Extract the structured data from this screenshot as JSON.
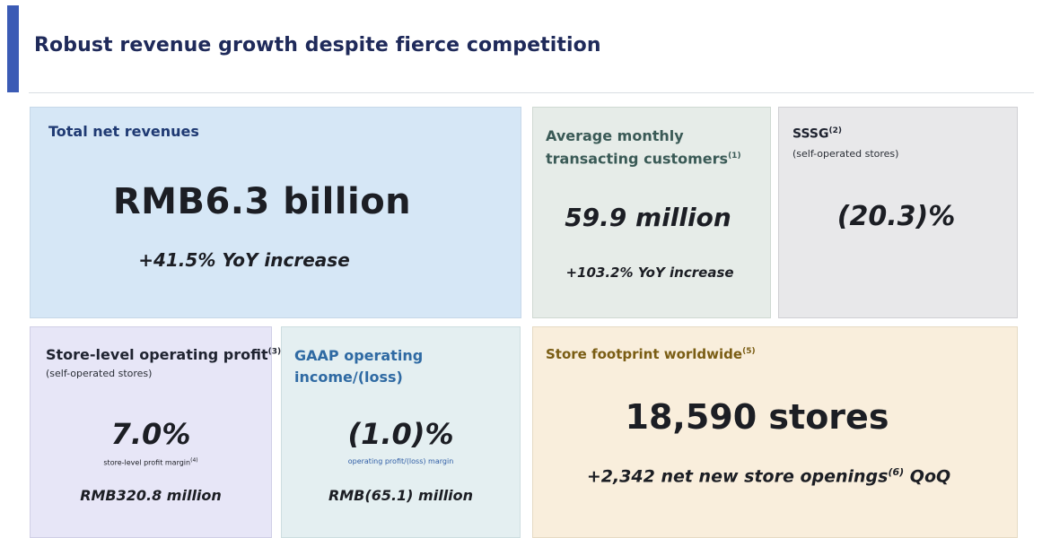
{
  "header": {
    "title": "Robust revenue growth despite fierce competition"
  },
  "revenue": {
    "label": "Total net revenues",
    "value": "RMB6.3 billion",
    "change": "+41.5% YoY increase"
  },
  "customers": {
    "label_line1": "Average monthly",
    "label_line2": "transacting customers",
    "label_sup": "(1)",
    "value": "59.9 million",
    "change": "+103.2% YoY increase"
  },
  "sssg": {
    "label": "SSSG",
    "label_sup": "(2)",
    "sublabel": "(self-operated stores)",
    "value": "(20.3)%"
  },
  "store_profit": {
    "label": "Store-level operating profit",
    "label_sup": "(3)",
    "sublabel": "(self-operated stores)",
    "value": "7.0%",
    "caption": "store-level profit margin",
    "caption_sup": "(4)",
    "amount": "RMB320.8 million"
  },
  "gaap": {
    "label_line1": "GAAP operating",
    "label_line2": "income/(loss)",
    "value": "(1.0)%",
    "caption": "operating profit/(loss) margin",
    "amount": "RMB(65.1) million"
  },
  "footprint": {
    "label": "Store footprint worldwide",
    "label_sup": "(5)",
    "value": "18,590 stores",
    "change_prefix": "+2,342 net new store openings",
    "change_sup": "(6)",
    "change_suffix": " QoQ"
  },
  "colors": {
    "accent_bar": "#3b5bb5",
    "title": "#1f2a5a",
    "revenue_bg": "#d6e7f6",
    "customers_bg": "#e6ece8",
    "sssg_bg": "#e8e8ea",
    "store_profit_bg": "#e7e6f7",
    "gaap_bg": "#e4eff1",
    "footprint_bg": "#f9eedc"
  }
}
